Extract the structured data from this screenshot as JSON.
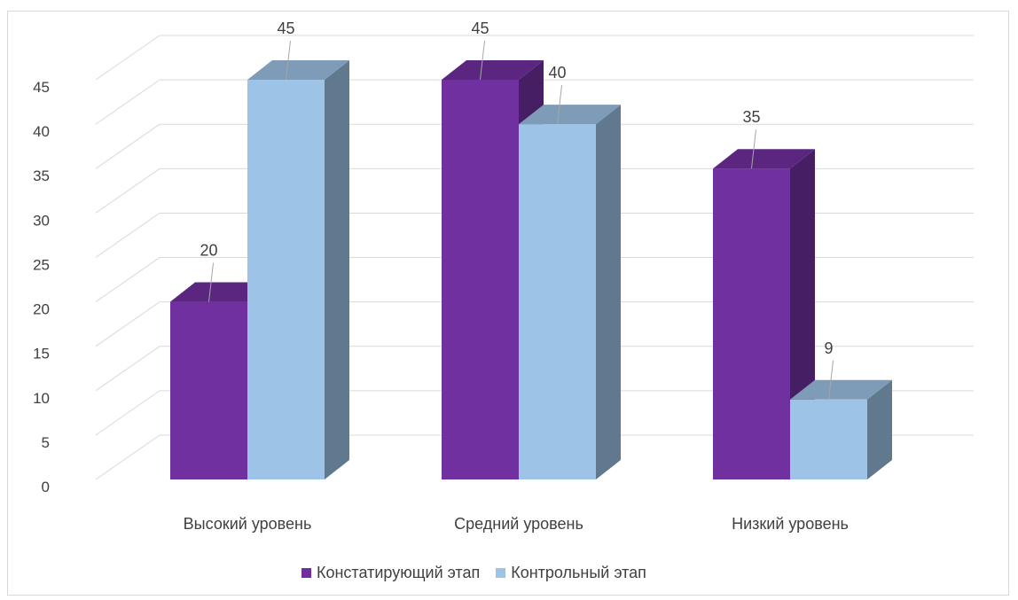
{
  "chart_data": {
    "type": "bar",
    "title": "",
    "xlabel": "",
    "ylabel": "",
    "categories": [
      "Высокий уровень",
      "Средний уровень",
      "Низкий уровень"
    ],
    "series": [
      {
        "name": "Констатирующий этап",
        "values": [
          20,
          45,
          35
        ],
        "color": "#7030a0"
      },
      {
        "name": "Контрольный этап",
        "values": [
          45,
          40,
          9
        ],
        "color": "#9dc3e6"
      }
    ],
    "ylim": [
      0,
      45
    ],
    "yticks": [
      "0",
      "5",
      "10",
      "15",
      "20",
      "25",
      "30",
      "35",
      "40",
      "45"
    ],
    "grid": true,
    "legend_position": "bottom",
    "style": "3d-clustered-column"
  }
}
